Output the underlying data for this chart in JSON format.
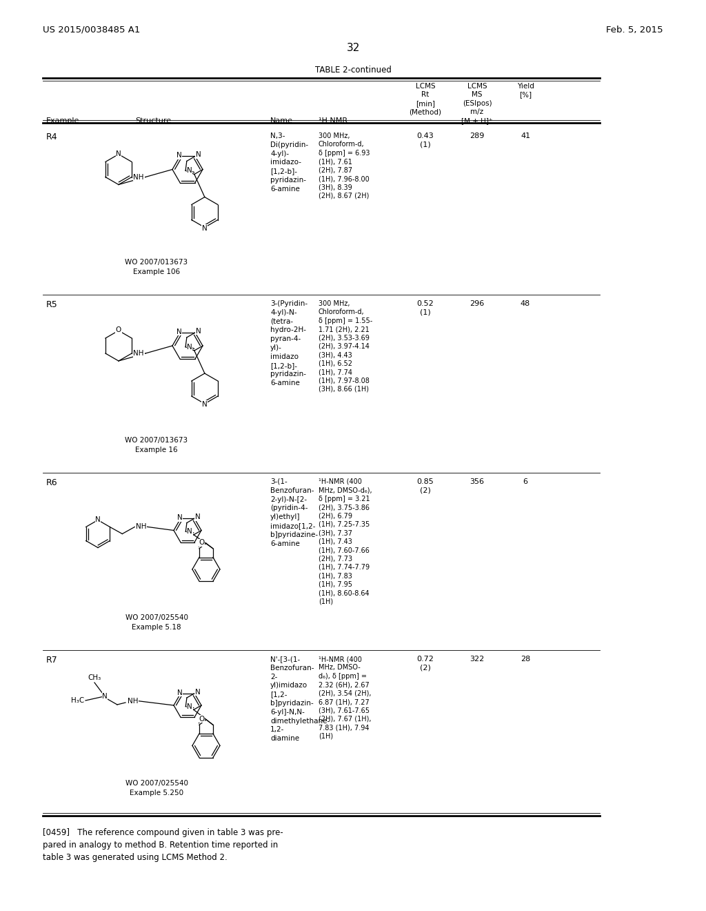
{
  "background_color": "#ffffff",
  "page_number": "32",
  "patent_left": "US 2015/0038485 A1",
  "patent_right": "Feb. 5, 2015",
  "table_title": "TABLE 2-continued",
  "rows": [
    {
      "example": "R4",
      "ref_line1": "WO 2007/013673",
      "ref_line2": "Example 106",
      "name": "N,3-\nDi(pyridin-\n4-yl)-\nimidazo-\n[1,2-b]-\npyridazin-\n6-amine",
      "nmr": "300 MHz,\nChloroform-d,\nδ [ppm] = 6.93\n(1H), 7.61\n(2H), 7.87\n(1H), 7.96-8.00\n(3H), 8.39\n(2H), 8.67 (2H)",
      "lcms_rt": "0.43\n(1)",
      "lcms_ms": "289",
      "yield_val": "41"
    },
    {
      "example": "R5",
      "ref_line1": "WO 2007/013673",
      "ref_line2": "Example 16",
      "name": "3-(Pyridin-\n4-yl)-N-\n(tetra-\nhydro-2H-\npyran-4-\nyl)-\nimidazo\n[1,2-b]-\npyridazin-\n6-amine",
      "nmr": "300 MHz,\nChloroform-d,\nδ [ppm] = 1.55-\n1.71 (2H), 2.21\n(2H), 3.53-3.69\n(2H), 3.97-4.14\n(3H), 4.43\n(1H), 6.52\n(1H), 7.74\n(1H), 7.97-8.08\n(3H), 8.66 (1H)",
      "lcms_rt": "0.52\n(1)",
      "lcms_ms": "296",
      "yield_val": "48"
    },
    {
      "example": "R6",
      "ref_line1": "WO 2007/025540",
      "ref_line2": "Example 5.18",
      "name": "3-(1-\nBenzofuran-\n2-yl)-N-[2-\n(pyridin-4-\nyl)ethyl]\nimidazo[1,2-\nb]pyridazine-\n6-amine",
      "nmr": "¹H-NMR (400\nMHz, DMSO-d₆),\nδ [ppm] = 3.21\n(2H), 3.75-3.86\n(2H), 6.79\n(1H), 7.25-7.35\n(3H), 7.37\n(1H), 7.43\n(1H), 7.60-7.66\n(2H), 7.73\n(1H), 7.74-7.79\n(1H), 7.83\n(1H), 7.95\n(1H), 8.60-8.64\n(1H)",
      "lcms_rt": "0.85\n(2)",
      "lcms_ms": "356",
      "yield_val": "6"
    },
    {
      "example": "R7",
      "ref_line1": "WO 2007/025540",
      "ref_line2": "Example 5.250",
      "name": "N'-[3-(1-\nBenzofuran-\n2-\nyl)imidazo\n[1,2-\nb]pyridazin-\n6-yl]-N,N-\ndimethylethane-\n1,2-\ndiamine",
      "nmr": "¹H-NMR (400\nMHz, DMSO-\nd₆), δ [ppm] =\n2.32 (6H), 2.67\n(2H), 3.54 (2H),\n6.87 (1H), 7.27\n(3H), 7.61-7.65\n(2H), 7.67 (1H),\n7.83 (1H), 7.94\n(1H)",
      "lcms_rt": "0.72\n(2)",
      "lcms_ms": "322",
      "yield_val": "28"
    }
  ],
  "footer_text": "[0459]   The reference compound given in table 3 was pre-\npared in analogy to method B. Retention time reported in\ntable 3 was generated using LCMS Method 2."
}
